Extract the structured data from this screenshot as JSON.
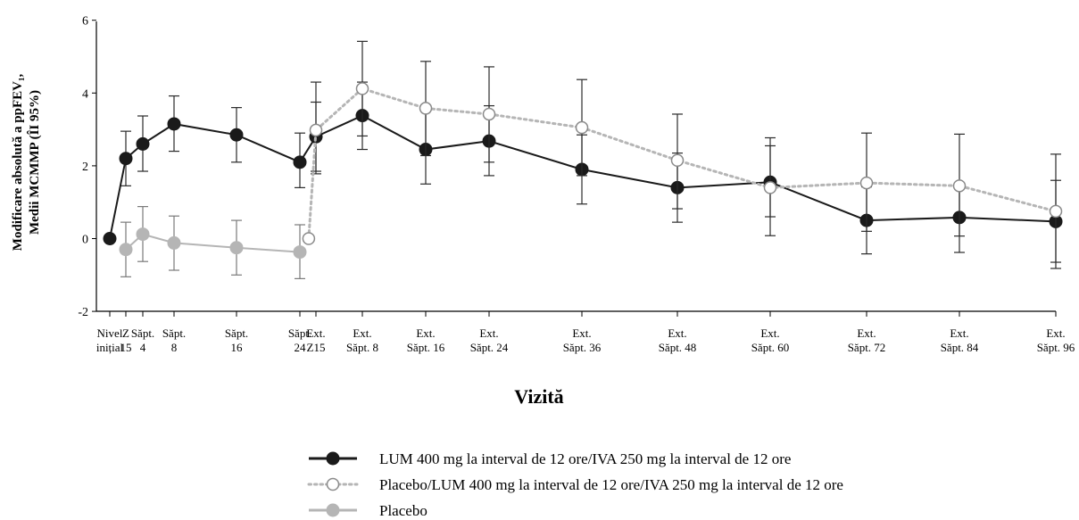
{
  "chart_data": {
    "type": "line",
    "title": "",
    "xlabel": "Vizită",
    "ylabel": [
      "Modificare absolută a ppFEV₁,",
      "Medii MCMMP (ÎI 95%)"
    ],
    "ylim": [
      -2,
      6
    ],
    "yticks": [
      "-2",
      "0",
      "2",
      "4",
      "6"
    ],
    "grid": false,
    "legend_position": "bottom",
    "x_ticks": [
      {
        "lines": [
          "Nivel",
          "inițial"
        ]
      },
      {
        "lines": [
          "Z",
          "15"
        ]
      },
      {
        "lines": [
          "Săpt.",
          "4"
        ]
      },
      {
        "lines": [
          "Săpt.",
          "8"
        ]
      },
      {
        "lines": [
          "Săpt.",
          "16"
        ]
      },
      {
        "lines": [
          "Săpt.",
          "24"
        ]
      },
      {
        "lines": [
          "Ext.",
          "Z15"
        ]
      },
      {
        "lines": [
          "Ext.",
          "Săpt. 8"
        ]
      },
      {
        "lines": [
          "Ext.",
          "Săpt. 16"
        ]
      },
      {
        "lines": [
          "Ext.",
          "Săpt. 24"
        ]
      },
      {
        "lines": [
          "Ext.",
          "Săpt. 36"
        ]
      },
      {
        "lines": [
          "Ext.",
          "Săpt. 48"
        ]
      },
      {
        "lines": [
          "Ext.",
          "Săpt. 60"
        ]
      },
      {
        "lines": [
          "Ext.",
          "Săpt. 72"
        ]
      },
      {
        "lines": [
          "Ext.",
          "Săpt. 84"
        ]
      },
      {
        "lines": [
          "Ext.",
          "Săpt. 96"
        ]
      }
    ],
    "series": [
      {
        "name": "LUM 400 mg la interval de 12 ore/IVA 250 mg la interval de 12 ore",
        "style": "solid-filled",
        "color": "#1a1a1a",
        "points": [
          {
            "x": 0,
            "y": 0.0
          },
          {
            "x": 1,
            "y": 2.2,
            "lo": 1.45,
            "hi": 2.95
          },
          {
            "x": 2,
            "y": 2.6,
            "lo": 1.85,
            "hi": 3.37
          },
          {
            "x": 3,
            "y": 3.15,
            "lo": 2.4,
            "hi": 3.92
          },
          {
            "x": 4,
            "y": 2.85,
            "lo": 2.1,
            "hi": 3.6
          },
          {
            "x": 5,
            "y": 2.1,
            "lo": 1.4,
            "hi": 2.9
          },
          {
            "x": 6,
            "y": 2.8,
            "lo": 1.85,
            "hi": 3.75
          },
          {
            "x": 7,
            "y": 3.38,
            "lo": 2.45,
            "hi": 4.3
          },
          {
            "x": 8,
            "y": 2.45,
            "lo": 1.5,
            "hi": 3.5
          },
          {
            "x": 9,
            "y": 2.68,
            "lo": 1.73,
            "hi": 3.65
          },
          {
            "x": 10,
            "y": 1.9,
            "lo": 0.95,
            "hi": 2.85
          },
          {
            "x": 11,
            "y": 1.4,
            "lo": 0.45,
            "hi": 2.35
          },
          {
            "x": 12,
            "y": 1.55,
            "lo": 0.6,
            "hi": 2.55
          },
          {
            "x": 13,
            "y": 0.5,
            "lo": -0.42,
            "hi": 1.42
          },
          {
            "x": 14,
            "y": 0.58,
            "lo": -0.38,
            "hi": 1.5
          },
          {
            "x": 15,
            "y": 0.47,
            "lo": -0.65,
            "hi": 1.6
          }
        ]
      },
      {
        "name": "Placebo/LUM 400 mg la interval de 12 ore/IVA 250 mg la interval de 12 ore",
        "style": "dotted-open",
        "color": "#b5b5b5",
        "points": [
          {
            "x": 5.55,
            "y": 0.0
          },
          {
            "x": 6,
            "y": 2.98,
            "lo": 1.78,
            "hi": 4.3
          },
          {
            "x": 7,
            "y": 4.12,
            "lo": 2.82,
            "hi": 5.42
          },
          {
            "x": 8,
            "y": 3.58,
            "lo": 2.28,
            "hi": 4.87
          },
          {
            "x": 9,
            "y": 3.42,
            "lo": 2.1,
            "hi": 4.72
          },
          {
            "x": 10,
            "y": 3.05,
            "lo": 1.73,
            "hi": 4.37
          },
          {
            "x": 11,
            "y": 2.15,
            "lo": 0.82,
            "hi": 3.42
          },
          {
            "x": 12,
            "y": 1.4,
            "lo": 0.08,
            "hi": 2.77
          },
          {
            "x": 13,
            "y": 1.53,
            "lo": 0.2,
            "hi": 2.9
          },
          {
            "x": 14,
            "y": 1.45,
            "lo": 0.07,
            "hi": 2.87
          },
          {
            "x": 15,
            "y": 0.75,
            "lo": -0.82,
            "hi": 2.32
          }
        ]
      },
      {
        "name": "Placebo",
        "style": "solid-filled",
        "color": "#b5b5b5",
        "points": [
          {
            "x": 1,
            "y": -0.3,
            "lo": -1.05,
            "hi": 0.45
          },
          {
            "x": 2,
            "y": 0.12,
            "lo": -0.63,
            "hi": 0.88
          },
          {
            "x": 3,
            "y": -0.12,
            "lo": -0.87,
            "hi": 0.62
          },
          {
            "x": 4,
            "y": -0.25,
            "lo": -1.0,
            "hi": 0.5
          },
          {
            "x": 5,
            "y": -0.37,
            "lo": -1.1,
            "hi": 0.38
          }
        ]
      }
    ]
  }
}
